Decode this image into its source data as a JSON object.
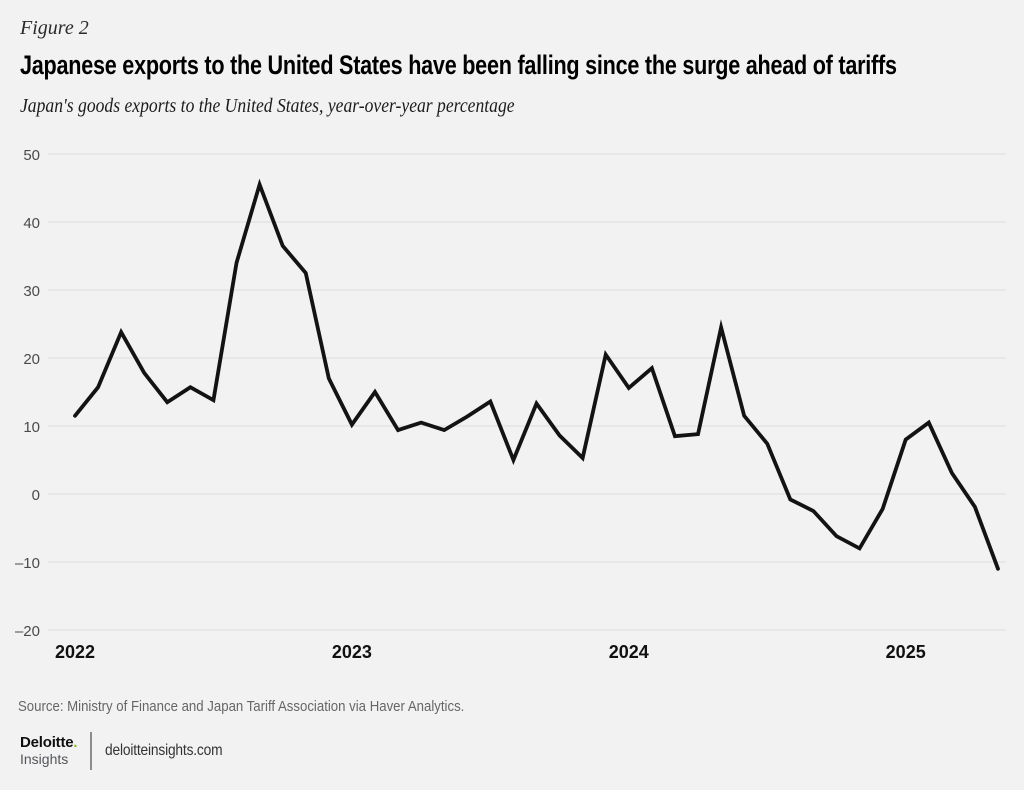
{
  "header": {
    "figure_label": "Figure 2"
  },
  "chart_data": {
    "type": "line",
    "title": "Japanese exports to the United States have been falling since the surge ahead of tariffs",
    "subtitle": "Japan's goods exports to the United States, year-over-year percentage",
    "x_unit": "month",
    "x_start": "2022-01",
    "x_end": "2025-05",
    "x_tick_labels": [
      "2022",
      "2023",
      "2024",
      "2025"
    ],
    "x_tick_month_index": [
      0,
      12,
      24,
      36
    ],
    "y_ticks": [
      50,
      40,
      30,
      20,
      10,
      0,
      -10,
      -20
    ],
    "ylim": [
      -20,
      50
    ],
    "grid": "horizontal",
    "legend": "none",
    "line_color": "#131313",
    "series": [
      {
        "name": "Japan goods exports to the US, year-over-year %",
        "values": [
          11.5,
          15.7,
          23.8,
          17.8,
          13.5,
          15.7,
          13.8,
          34.0,
          45.5,
          36.5,
          32.5,
          17.0,
          10.2,
          15.0,
          9.4,
          10.5,
          9.4,
          11.4,
          13.6,
          5.0,
          13.3,
          8.6,
          5.3,
          20.5,
          15.6,
          18.5,
          8.5,
          8.8,
          24.5,
          11.5,
          7.4,
          -0.8,
          -2.5,
          -6.2,
          -8.0,
          -2.2,
          8.0,
          10.5,
          3.1,
          -1.9,
          -11.0
        ]
      }
    ]
  },
  "footer": {
    "source": "Source: Ministry of Finance and Japan Tariff Association via Haver Analytics.",
    "brand_name": "Deloitte",
    "brand_dot": ".",
    "brand_sub": "Insights",
    "site": "deloitteinsights.com"
  },
  "colors": {
    "background": "#f2f2f2",
    "grid": "#dcdcdc",
    "line": "#131313",
    "accent_green": "#86bc25"
  }
}
